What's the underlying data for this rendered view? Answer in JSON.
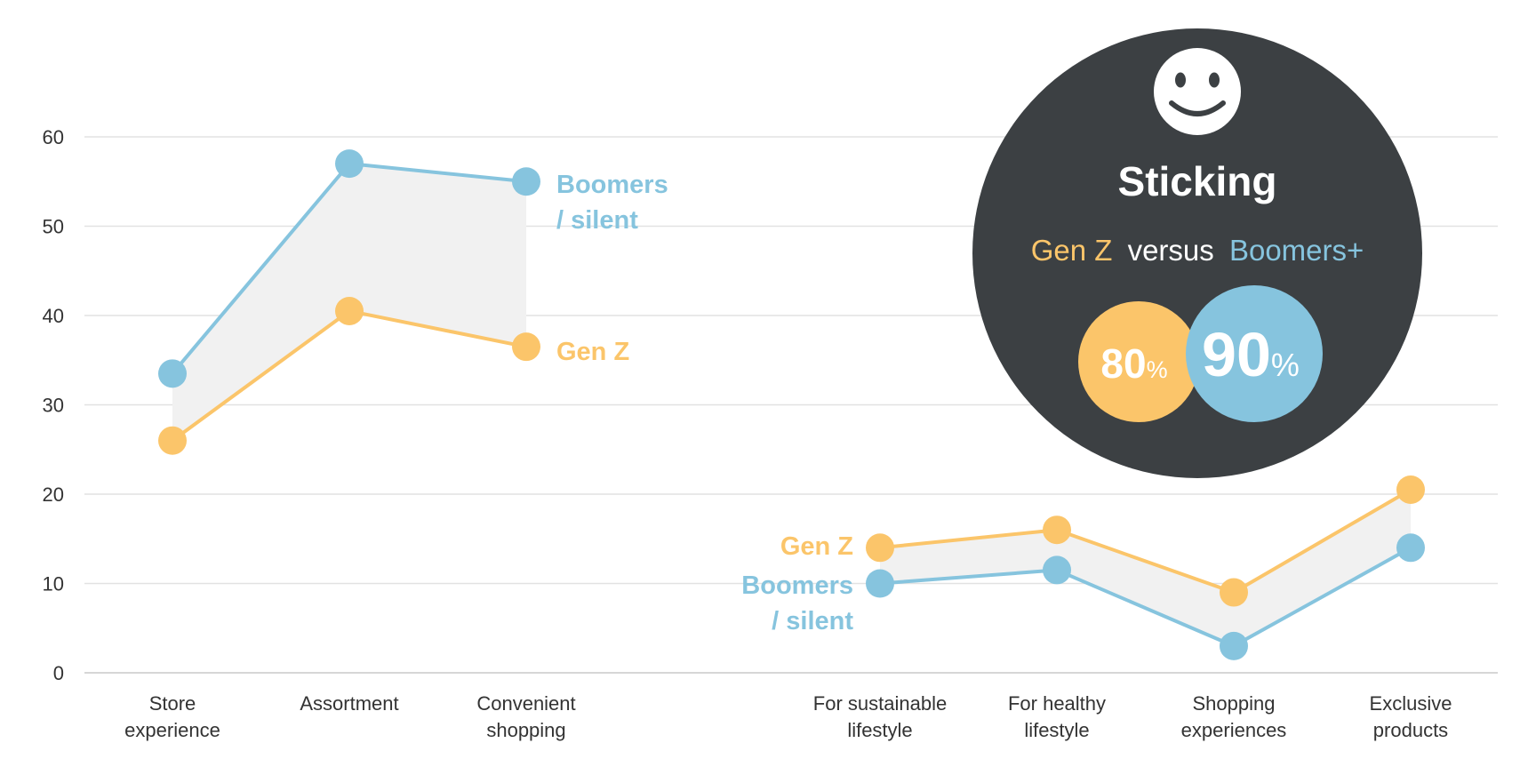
{
  "colors": {
    "gen_z": "#FBC56A",
    "boomers": "#86C4DE",
    "band": "#F1F1F1",
    "grid": "#E2E2E2",
    "badge_bg": "#3C4043",
    "text": "#333333"
  },
  "chart_data": {
    "type": "line",
    "ylim": [
      0,
      60
    ],
    "yticks": [
      "0",
      "10",
      "20",
      "30",
      "40",
      "50",
      "60"
    ],
    "categories": [
      [
        "Store",
        "experience"
      ],
      [
        "Assortment"
      ],
      [
        "Convenient",
        "shopping"
      ],
      [
        "For sustainable",
        "lifestyle"
      ],
      [
        "For healthy",
        "lifestyle"
      ],
      [
        "Shopping",
        "experiences"
      ],
      [
        "Exclusive",
        "products"
      ]
    ],
    "series": [
      {
        "name": "Boomers / silent",
        "color": "#86C4DE",
        "groups": [
          {
            "x": [
              0,
              1,
              2
            ],
            "values": [
              33.5,
              57,
              55
            ]
          },
          {
            "x": [
              3,
              4,
              5,
              6
            ],
            "values": [
              10,
              11.5,
              3,
              14
            ]
          }
        ]
      },
      {
        "name": "Gen Z",
        "color": "#FBC56A",
        "groups": [
          {
            "x": [
              0,
              1,
              2
            ],
            "values": [
              26,
              40.5,
              36.5
            ]
          },
          {
            "x": [
              3,
              4,
              5,
              6
            ],
            "values": [
              14,
              16,
              9,
              20.5
            ]
          }
        ]
      }
    ],
    "series_labels": {
      "boomers_right": [
        "Boomers",
        "/ silent"
      ],
      "genz_right": "Gen Z",
      "genz_left": "Gen Z",
      "boomers_left": [
        "Boomers",
        "/ silent"
      ]
    }
  },
  "badge": {
    "icon": "smiley-face-icon",
    "title": "Sticking",
    "subtitle_genz": "Gen Z",
    "subtitle_versus": "versus",
    "subtitle_boomers": "Boomers+",
    "genz_value": "80",
    "boomers_value": "90",
    "percent": "%"
  }
}
